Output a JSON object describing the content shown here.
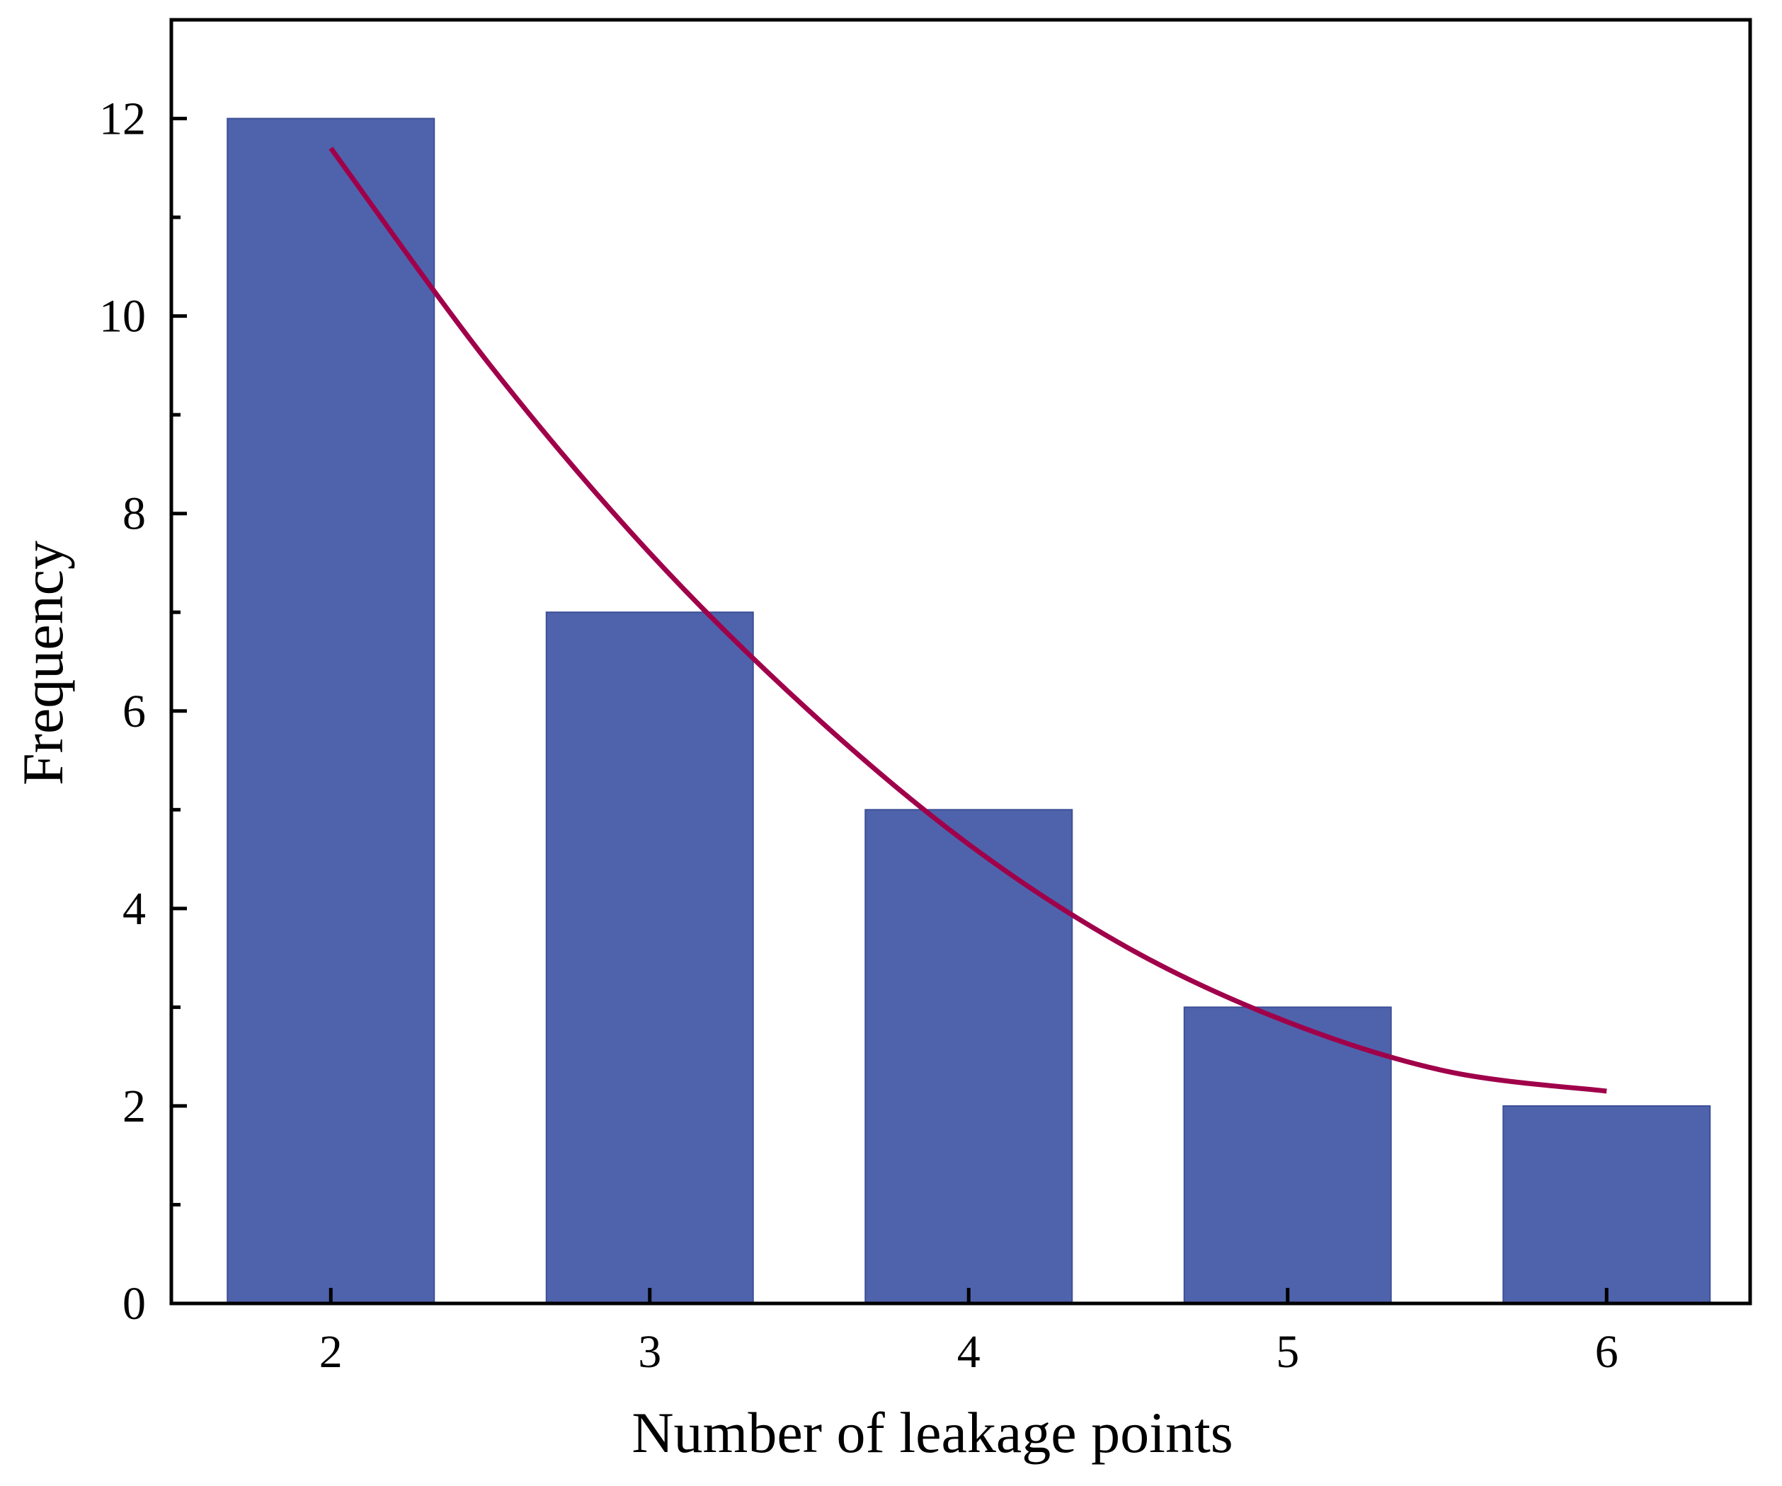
{
  "chart_data": {
    "type": "bar",
    "title": "",
    "xlabel": "Number of leakage points",
    "ylabel": "Frequency",
    "categories": [
      "2",
      "3",
      "4",
      "5",
      "6"
    ],
    "x": [
      2,
      3,
      4,
      5,
      6
    ],
    "values": [
      12,
      7,
      5,
      3,
      2
    ],
    "ylim": [
      0,
      13
    ],
    "xlim": [
      1.5,
      6.45
    ],
    "yticks": [
      0,
      2,
      4,
      6,
      8,
      10,
      12
    ],
    "yticks_minor": [
      1,
      3,
      5,
      7,
      9,
      11
    ],
    "fit_curve": {
      "x": [
        2,
        2.5,
        3,
        3.5,
        4,
        4.5,
        5,
        5.5,
        6
      ],
      "y": [
        11.7,
        9.5,
        7.6,
        6.0,
        4.65,
        3.6,
        2.85,
        2.35,
        2.15
      ]
    },
    "grid": false,
    "colors": {
      "bar": "#4F63AC",
      "curve": "#A0004A",
      "axis": "#000000"
    }
  }
}
